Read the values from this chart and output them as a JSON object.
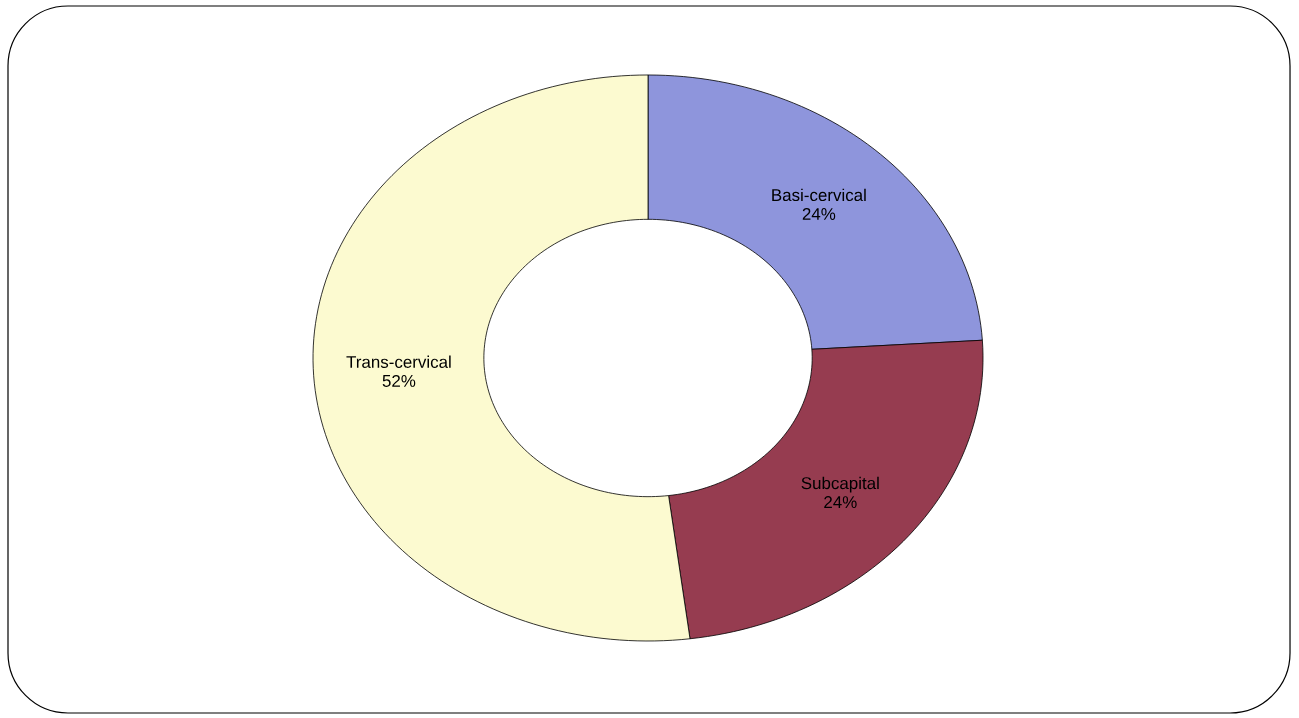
{
  "chart_data": {
    "type": "donut",
    "categories": [
      "Basi-cervical",
      "Subcapital",
      "Trans-cervical"
    ],
    "values": [
      24,
      24,
      52
    ],
    "colors": [
      "#8e95dc",
      "#963c50",
      "#fcfad0"
    ],
    "value_labels": [
      "24%",
      "24%",
      "52%"
    ]
  }
}
